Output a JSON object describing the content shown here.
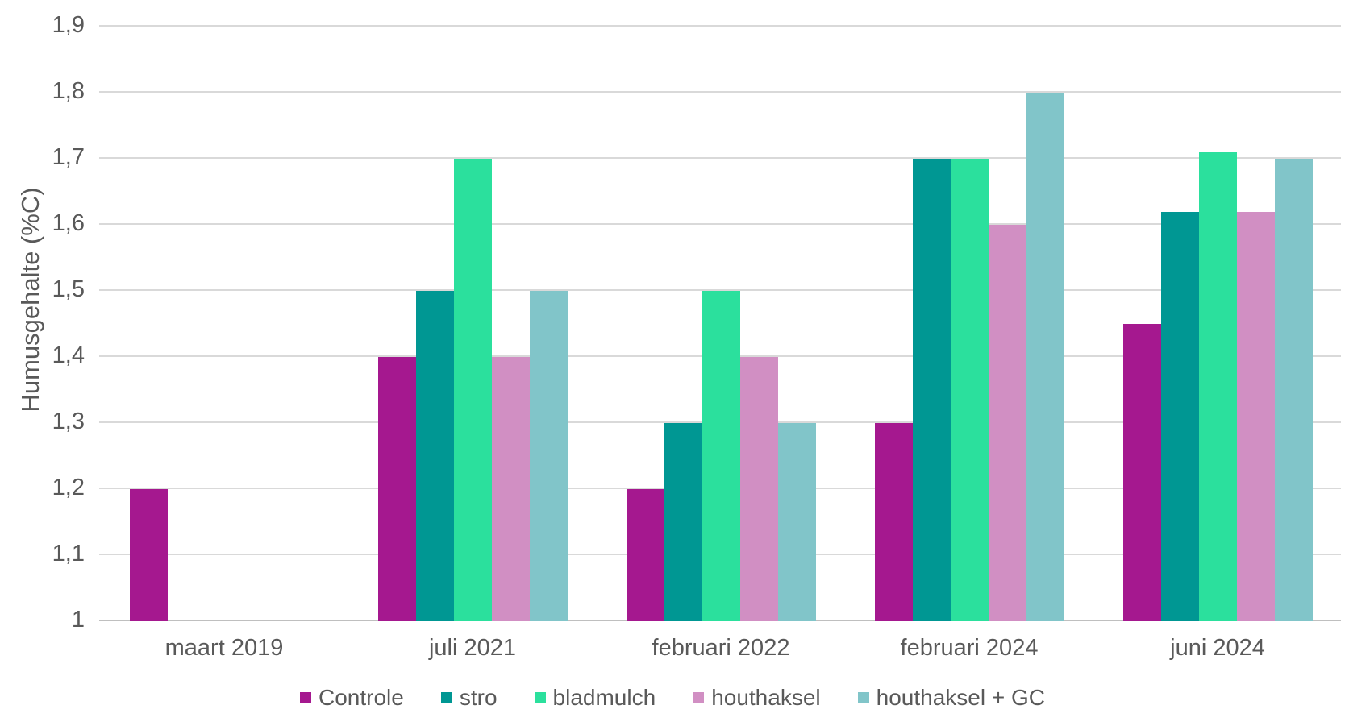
{
  "chart_data": {
    "type": "bar",
    "title": "",
    "xlabel": "",
    "ylabel": "Humusgehalte (%C)",
    "categories": [
      "maart 2019",
      "juli 2021",
      "februari 2022",
      "februari 2024",
      "juni 2024"
    ],
    "series": [
      {
        "name": "Controle",
        "color": "#A5188F",
        "values": [
          1.2,
          1.4,
          1.2,
          1.3,
          1.45
        ]
      },
      {
        "name": "stro",
        "color": "#009793",
        "values": [
          null,
          1.5,
          1.3,
          1.7,
          1.62
        ]
      },
      {
        "name": "bladmulch",
        "color": "#2BE09D",
        "values": [
          null,
          1.7,
          1.5,
          1.7,
          1.71
        ]
      },
      {
        "name": "houthaksel",
        "color": "#D18FC3",
        "values": [
          null,
          1.4,
          1.4,
          1.6,
          1.62
        ]
      },
      {
        "name": "houthaksel + GC",
        "color": "#81C5C9",
        "values": [
          null,
          1.5,
          1.3,
          1.8,
          1.7
        ]
      }
    ],
    "ylim": [
      1,
      1.9
    ],
    "ytick_step": 0.1,
    "ytick_labels": [
      "1",
      "1,1",
      "1,2",
      "1,3",
      "1,4",
      "1,5",
      "1,6",
      "1,7",
      "1,8",
      "1,9"
    ],
    "grid": true,
    "legend_position": "bottom",
    "colors": {
      "text": "#595959",
      "gridline": "#D9D9D9",
      "baseline": "#BFBFBF",
      "background": "#FFFFFF"
    }
  }
}
